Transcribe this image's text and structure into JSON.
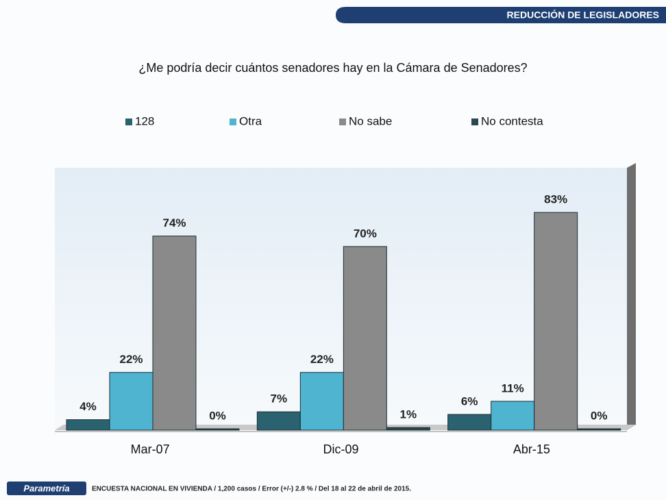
{
  "header": {
    "section": "REDUCCIÓN  DE LEGISLADORES"
  },
  "chart_data": {
    "type": "bar",
    "title": "¿Me podría decir cuántos senadores hay en la Cámara de Senadores?",
    "categories": [
      "Mar-07",
      "Dic-09",
      "Abr-15"
    ],
    "series": [
      {
        "name": "128",
        "color": "#2b6270",
        "values": [
          4,
          7,
          6
        ],
        "value_labels": [
          "4%",
          "7%",
          "6%"
        ]
      },
      {
        "name": "Otra",
        "color": "#4fb4d0",
        "values": [
          22,
          22,
          11
        ],
        "value_labels": [
          "22%",
          "22%",
          "11%"
        ]
      },
      {
        "name": "No sabe",
        "color": "#8a8a8a",
        "values": [
          74,
          70,
          83
        ],
        "value_labels": [
          "74%",
          "70%",
          "83%"
        ]
      },
      {
        "name": "No contesta",
        "color": "#2a4752",
        "values": [
          0,
          1,
          0
        ],
        "value_labels": [
          "0%",
          "1%",
          "0%"
        ]
      }
    ],
    "ylim": [
      0,
      100
    ]
  },
  "footer": {
    "brand": "Parametría",
    "note": "ENCUESTA  NACIONAL  EN  VIVIENDA   / 1,200 casos / Error (+/-) 2.8 % / Del 18 al 22 de abril de 2015."
  }
}
